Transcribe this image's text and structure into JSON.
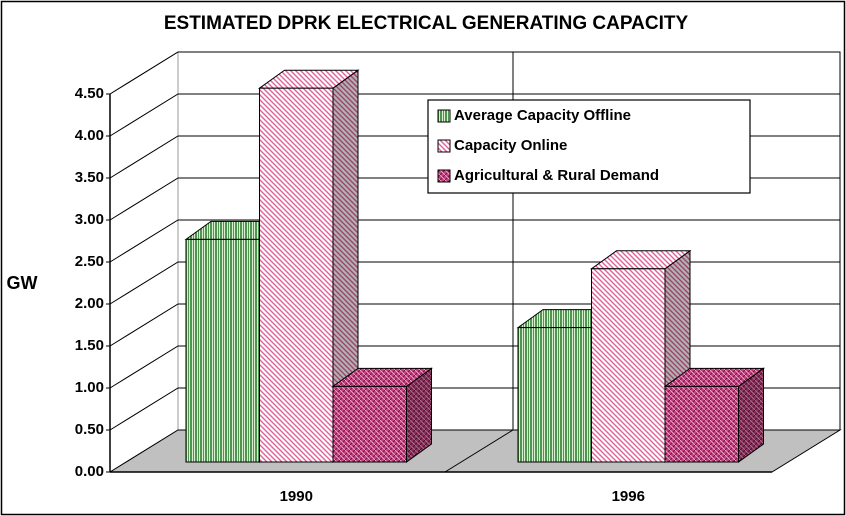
{
  "chart_data": {
    "type": "bar3d",
    "title": "ESTIMATED DPRK ELECTRICAL GENERATING CAPACITY",
    "y_label": "GW",
    "categories": [
      "1990",
      "1996"
    ],
    "series": [
      {
        "name": "Average Capacity Offline",
        "color": "#2e7d32",
        "values": [
          2.65,
          1.6
        ]
      },
      {
        "name": "Capacity Online",
        "color": "#e0609a",
        "values": [
          4.45,
          2.3
        ]
      },
      {
        "name": "Agricultural & Rural Demand",
        "color": "#c2407e",
        "values": [
          0.9,
          0.9
        ]
      }
    ],
    "ylim": [
      0,
      4.5
    ],
    "yticks": [
      {
        "value": 0,
        "label": "0.00"
      },
      {
        "value": 0.5,
        "label": "0.50"
      },
      {
        "value": 1,
        "label": "1.00"
      },
      {
        "value": 1.5,
        "label": "1.50"
      },
      {
        "value": 2,
        "label": "2.00"
      },
      {
        "value": 2.5,
        "label": "2.50"
      },
      {
        "value": 3,
        "label": "3.00"
      },
      {
        "value": 3.5,
        "label": "3.50"
      },
      {
        "value": 4,
        "label": "4.00"
      },
      {
        "value": 4.5,
        "label": "4.50"
      }
    ],
    "grid": true,
    "legend": "upper right"
  }
}
